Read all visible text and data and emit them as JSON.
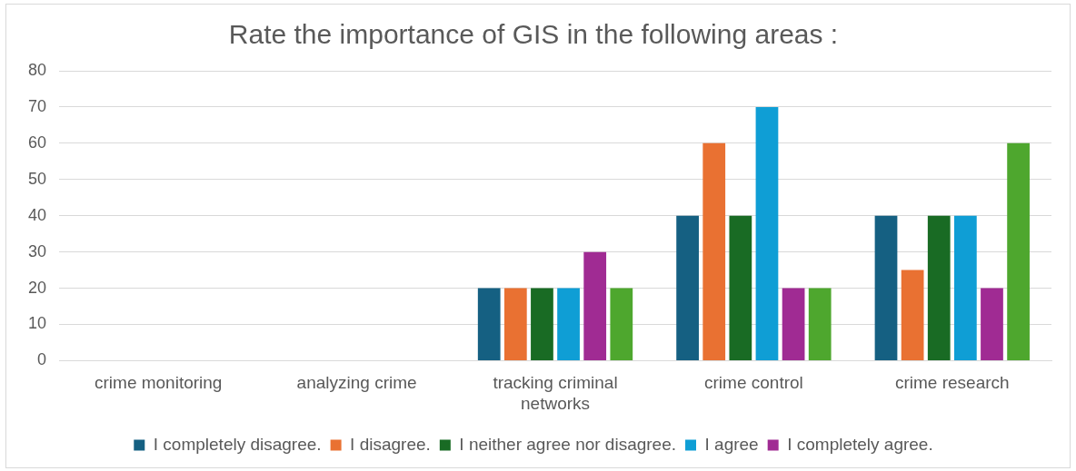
{
  "chart_data": {
    "type": "bar",
    "title": "Rate the importance of GIS in the following areas :",
    "categories": [
      "crime monitoring",
      "analyzing crime",
      "tracking criminal networks",
      "crime control",
      "crime research"
    ],
    "series": [
      {
        "name": "I completely disagree.",
        "color": "#156082",
        "values": [
          0,
          0,
          20,
          40,
          40
        ]
      },
      {
        "name": "I disagree.",
        "color": "#e97132",
        "values": [
          0,
          0,
          20,
          60,
          25
        ]
      },
      {
        "name": "I neither agree nor disagree.",
        "color": "#196b24",
        "values": [
          0,
          0,
          20,
          40,
          40
        ]
      },
      {
        "name": "I agree",
        "color": "#0f9ed5",
        "values": [
          0,
          0,
          20,
          70,
          40
        ]
      },
      {
        "name": "I completely agree.",
        "color": "#a02b93",
        "values": [
          0,
          0,
          30,
          20,
          20
        ]
      },
      {
        "color": "#4ea72e",
        "values": [
          0,
          0,
          20,
          20,
          60
        ]
      }
    ],
    "ylim": [
      0,
      80
    ],
    "yticks": [
      0,
      10,
      20,
      30,
      40,
      50,
      60,
      70,
      80
    ],
    "grid": "y",
    "legend": "bottom"
  }
}
